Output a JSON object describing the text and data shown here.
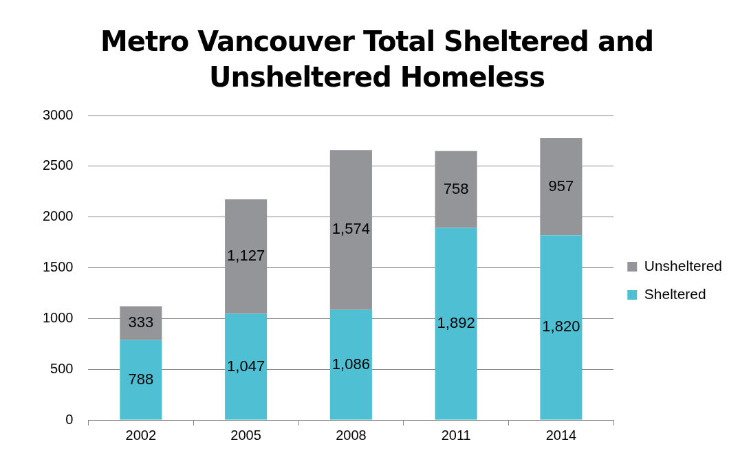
{
  "chart_data": {
    "type": "bar",
    "title": "Metro Vancouver Total Sheltered and Unsheltered Homeless",
    "categories": [
      "2002",
      "2005",
      "2008",
      "2011",
      "2014"
    ],
    "stacked": true,
    "series": [
      {
        "name": "Sheltered",
        "color": "#4fc0d3",
        "values": [
          788,
          1047,
          1086,
          1892,
          1820
        ],
        "value_labels": [
          "788",
          "1,047",
          "1,086",
          "1,892",
          "1,820"
        ]
      },
      {
        "name": "Unsheltered",
        "color": "#939598",
        "values": [
          333,
          1127,
          1574,
          758,
          957
        ],
        "value_labels": [
          "333",
          "1,127",
          "1,574",
          "758",
          "957"
        ]
      }
    ],
    "ylim": [
      0,
      3000
    ],
    "yticks": [
      0,
      500,
      1000,
      1500,
      2000,
      2500,
      3000
    ],
    "grid": "y",
    "legend": "right"
  }
}
